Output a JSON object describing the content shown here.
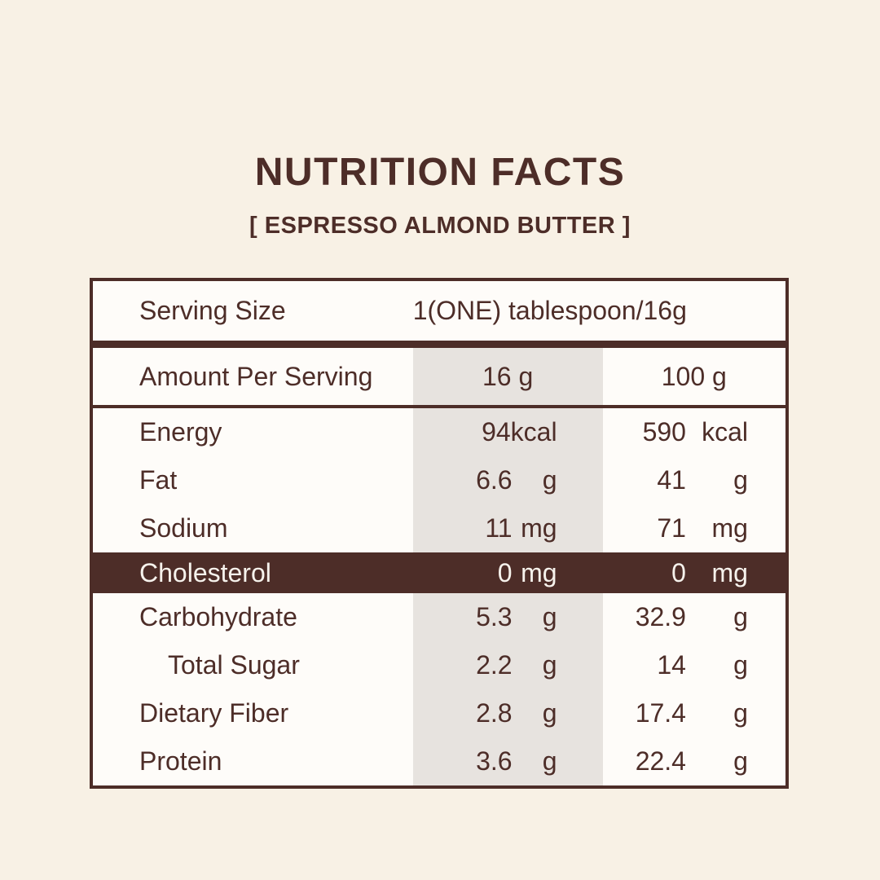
{
  "title": "NUTRITION FACTS",
  "subtitle": "[ ESPRESSO ALMOND BUTTER ]",
  "colors": {
    "ink": "#4d2d28",
    "bg": "#f8f1e5",
    "paper": "#fefcf9",
    "graycol": "#e7e3df",
    "ink-on-dark": "#f6f2ec"
  },
  "table": {
    "serving": {
      "label": "Serving Size",
      "value": "1(ONE) tablespoon/16g"
    },
    "header": {
      "label": "Amount Per Serving",
      "col1": "16 g",
      "col2": "100 g"
    },
    "rows": [
      {
        "label": "Energy",
        "indent": false,
        "highlight": false,
        "v1": "94",
        "u1": "kcal",
        "v2": "590",
        "u2": "kcal"
      },
      {
        "label": "Fat",
        "indent": false,
        "highlight": false,
        "v1": "6.6",
        "u1": "g",
        "v2": "41",
        "u2": "g"
      },
      {
        "label": "Sodium",
        "indent": false,
        "highlight": false,
        "v1": "11",
        "u1": "mg",
        "v2": "71",
        "u2": "mg"
      },
      {
        "label": "Cholesterol",
        "indent": false,
        "highlight": true,
        "v1": "0",
        "u1": "mg",
        "v2": "0",
        "u2": "mg"
      },
      {
        "label": "Carbohydrate",
        "indent": false,
        "highlight": false,
        "v1": "5.3",
        "u1": "g",
        "v2": "32.9",
        "u2": "g"
      },
      {
        "label": "Total Sugar",
        "indent": true,
        "highlight": false,
        "v1": "2.2",
        "u1": "g",
        "v2": "14",
        "u2": "g"
      },
      {
        "label": "Dietary Fiber",
        "indent": false,
        "highlight": false,
        "v1": "2.8",
        "u1": "g",
        "v2": "17.4",
        "u2": "g"
      },
      {
        "label": "Protein",
        "indent": false,
        "highlight": false,
        "v1": "3.6",
        "u1": "g",
        "v2": "22.4",
        "u2": "g"
      }
    ]
  }
}
